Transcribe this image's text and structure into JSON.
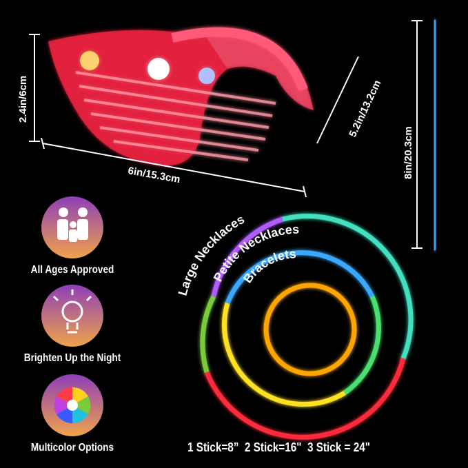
{
  "dimensions": {
    "glasses_height": "2.4in/6cm",
    "glasses_arm": "5.2in/13.2cm",
    "glasses_width": "6in/15.3cm",
    "stick_length": "8in/20.3cm"
  },
  "features": [
    {
      "icon": "family-icon",
      "label": "All Ages Approved"
    },
    {
      "icon": "light-bulb-icon",
      "label": "Brighten Up the Night"
    },
    {
      "icon": "color-wheel-icon",
      "label": "Multicolor Options"
    }
  ],
  "rings": {
    "large": "Large Necklaces",
    "petite": "Petite Necklaces",
    "bracelet": "Bracelets"
  },
  "footer": "1 Stick=8”  2 Stick=16\"  3 Stick = 24\"",
  "colors": {
    "glasses": "#ff2a4a",
    "stick": "#3aa8ff",
    "bracelet": "#ffa500"
  }
}
